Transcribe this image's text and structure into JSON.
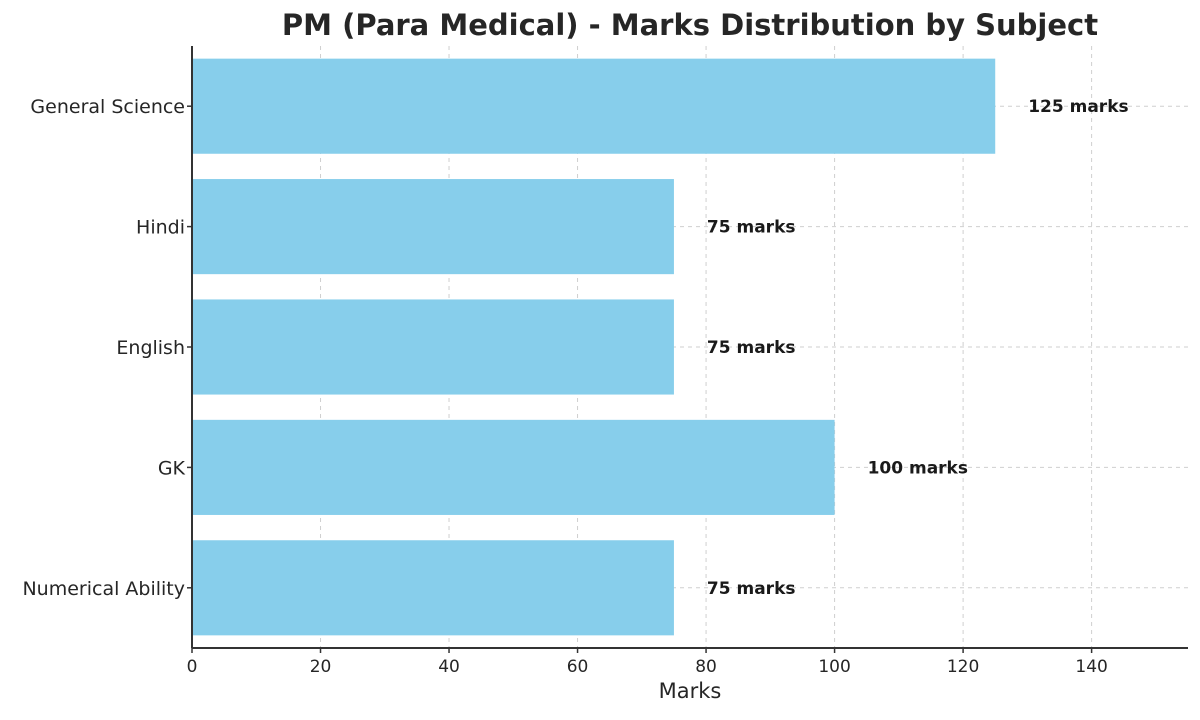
{
  "chart_data": {
    "type": "bar",
    "orientation": "horizontal",
    "title": "PM (Para Medical) - Marks Distribution by Subject",
    "xlabel": "Marks",
    "ylabel": "",
    "categories": [
      "General Science",
      "Hindi",
      "English",
      "GK",
      "Numerical Ability"
    ],
    "values": [
      125,
      75,
      75,
      100,
      75
    ],
    "data_labels": [
      "125 marks",
      "75 marks",
      "75 marks",
      "100 marks",
      "75 marks"
    ],
    "xlim": [
      0,
      155
    ],
    "xticks": [
      0,
      20,
      40,
      60,
      80,
      100,
      120,
      140
    ],
    "grid": true,
    "bar_color": "#87CEEB"
  }
}
